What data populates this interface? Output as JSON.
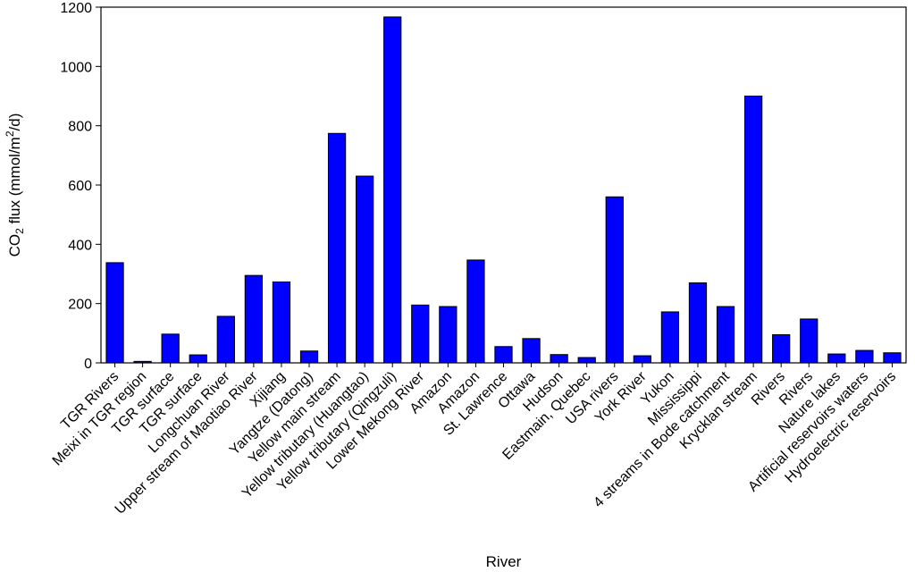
{
  "chart_data": {
    "type": "bar",
    "xlabel": "River",
    "ylabel": "CO₂ flux (mmol/m²/d)",
    "ylabel_parts": {
      "pre": "CO",
      "sub": "2",
      "mid": " flux (mmol/m",
      "sup": "2",
      "post": "/d)"
    },
    "ylim": [
      0,
      1200
    ],
    "yticks": [
      0,
      200,
      400,
      600,
      800,
      1000,
      1200
    ],
    "grid": false,
    "bar_color": "#0000ff",
    "categories": [
      "TGR Rivers",
      "Meixi in TGR region",
      "TGR surface",
      "TGR surface",
      "Longchuan River",
      "Upper stream of Maotiao River",
      "Xijiang",
      "Yangtze (Datong)",
      "Yellow main stream",
      "Yellow tributary (Huangtao)",
      "Yellow tributary (Qingzuli)",
      "Lower Mekong River",
      "Amazon",
      "Amazon",
      "St. Lawrence",
      "Ottawa",
      "Hudson",
      "Eastmain, Quebec",
      "USA rivers",
      "York River",
      "Yukon",
      "Mississippi",
      "4 streams in Bode catchment",
      "Krycklan stream",
      "Rivers",
      "Rivers",
      "Nature lakes",
      "Artificial reservoirs waters",
      "Hydroelectric reservoirs"
    ],
    "values": [
      338,
      5,
      97,
      27,
      157,
      295,
      273,
      40,
      774,
      630,
      1167,
      195,
      190,
      347,
      55,
      82,
      28,
      18,
      560,
      24,
      172,
      270,
      190,
      900,
      95,
      148,
      30,
      42,
      34
    ]
  }
}
